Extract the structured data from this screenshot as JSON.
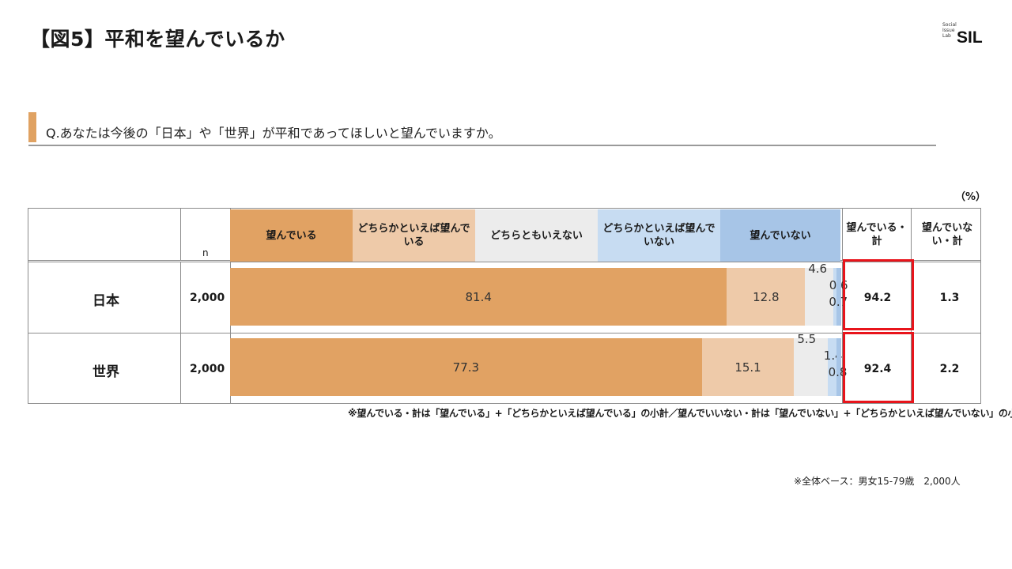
{
  "title": "【図5】平和を望んでいるか",
  "logo": {
    "small": [
      "Social",
      "Issue",
      "Lab"
    ],
    "big": "SIL"
  },
  "question": "Q.あなたは今後の「日本」や「世界」が平和であってほしいと望んでいますか。",
  "unit": "（%）",
  "n_label": "n",
  "colors": {
    "accent": "#e0a262",
    "highlight": "#e8141b"
  },
  "chart_data": {
    "type": "bar",
    "orientation": "horizontal",
    "stacked": true,
    "categories": [
      "望んでいる",
      "どちらかといえば望んでいる",
      "どちらともいえない",
      "どちらかといえば望んでいない",
      "望んでいない"
    ],
    "category_colors": [
      "#e1a263",
      "#eecaa9",
      "#ececec",
      "#c7dcf2",
      "#a7c5e7"
    ],
    "rows": [
      {
        "label": "日本",
        "n": "2,000",
        "values": [
          81.4,
          12.8,
          4.6,
          0.6,
          0.7
        ],
        "total_want": "94.2",
        "total_not": "1.3"
      },
      {
        "label": "世界",
        "n": "2,000",
        "values": [
          77.3,
          15.1,
          5.5,
          1.4,
          0.8
        ],
        "total_want": "92.4",
        "total_not": "2.2"
      }
    ],
    "value_labels": [
      [
        "81.4",
        "12.8",
        "4.6",
        "0.6",
        "0.7"
      ],
      [
        "77.3",
        "15.1",
        "5.5",
        "1.4",
        "0.8"
      ]
    ],
    "total_headers": [
      "望んでいる・計",
      "望んでいない・計"
    ],
    "xlim": [
      0,
      100
    ]
  },
  "note": "※望んでいる・計は「望んでいる」+「どちらかといえば望んでいる」の小計／望んでいいない・計は「望んでいない」+「どちらかといえば望んでいない」の小計",
  "base": "※全体ベース：男女15-79歳　2,000人"
}
